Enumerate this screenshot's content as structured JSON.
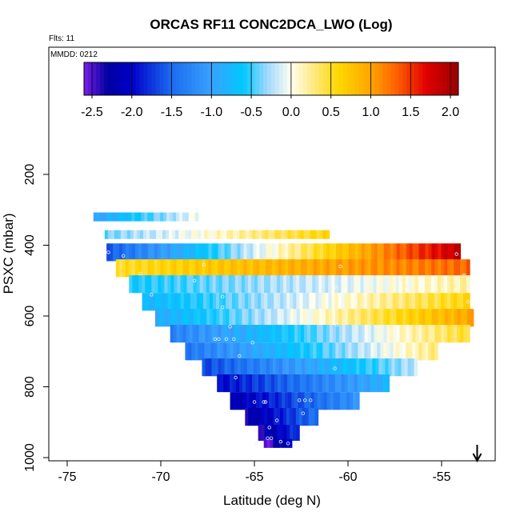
{
  "chart_data": {
    "type": "heatmap",
    "title": "ORCAS RF11 CONC2DCA_LWO (Log)",
    "subtitle_flights": "Flts: 11",
    "subtitle_date": "MMDD: 0212",
    "xlabel": "Latitude (deg N)",
    "ylabel": "PSXC (mbar)",
    "xlim": [
      -76,
      -52.2
    ],
    "ylim": [
      1010,
      30
    ],
    "y_inverted": true,
    "x_ticks": [
      -75,
      -70,
      -65,
      -60,
      -55
    ],
    "x_tick_labels": [
      "-75",
      "-70",
      "-65",
      "-60",
      "-55"
    ],
    "y_ticks": [
      200,
      400,
      600,
      800,
      1000
    ],
    "y_tick_labels": [
      "200",
      "400",
      "600",
      "800",
      "1000"
    ],
    "colorbar": {
      "range": [
        -2.6,
        2.1
      ],
      "ticks": [
        -2.5,
        -2.0,
        -1.5,
        -1.0,
        -0.5,
        0.0,
        0.5,
        1.0,
        1.5,
        2.0
      ],
      "tick_labels": [
        "-2.5",
        "-2.0",
        "-1.5",
        "-1.0",
        "-0.5",
        "0.0",
        "0.5",
        "1.0",
        "1.5",
        "2.0"
      ],
      "stops": [
        {
          "v": -2.6,
          "c": "#7a1ee8"
        },
        {
          "v": -2.3,
          "c": "#0000a0"
        },
        {
          "v": -2.0,
          "c": "#0000c8"
        },
        {
          "v": -1.5,
          "c": "#1a6cf0"
        },
        {
          "v": -1.0,
          "c": "#3aa0ff"
        },
        {
          "v": -0.6,
          "c": "#00c8ff"
        },
        {
          "v": -0.3,
          "c": "#a0d8ff"
        },
        {
          "v": 0.0,
          "c": "#fffff0"
        },
        {
          "v": 0.3,
          "c": "#ffe87a"
        },
        {
          "v": 0.6,
          "c": "#ffd700"
        },
        {
          "v": 1.0,
          "c": "#ffa500"
        },
        {
          "v": 1.3,
          "c": "#ff6600"
        },
        {
          "v": 1.7,
          "c": "#e00000"
        },
        {
          "v": 2.1,
          "c": "#9a0000"
        }
      ]
    },
    "rows": [
      {
        "p": 320,
        "h": 25,
        "lat0": -73.6,
        "lat1": -68.0,
        "v0": -1.0,
        "v1": 0.0
      },
      {
        "p": 370,
        "h": 25,
        "lat0": -73.0,
        "lat1": -61.0,
        "v0": -0.4,
        "v1": 0.6
      },
      {
        "p": 420,
        "h": 50,
        "lat0": -72.9,
        "lat1": -54.0,
        "v0": -1.6,
        "v1": 1.9
      },
      {
        "p": 465,
        "h": 50,
        "lat0": -72.4,
        "lat1": -53.5,
        "v0": 0.5,
        "v1": 1.3
      },
      {
        "p": 510,
        "h": 50,
        "lat0": -71.7,
        "lat1": -53.5,
        "v0": -0.6,
        "v1": 0.2
      },
      {
        "p": 560,
        "h": 50,
        "lat0": -71.0,
        "lat1": -53.5,
        "v0": -0.8,
        "v1": 0.6
      },
      {
        "p": 605,
        "h": 50,
        "lat0": -70.3,
        "lat1": -53.3,
        "v0": -0.9,
        "v1": 1.0
      },
      {
        "p": 650,
        "h": 50,
        "lat0": -69.5,
        "lat1": -53.5,
        "v0": -1.3,
        "v1": 0.5
      },
      {
        "p": 700,
        "h": 50,
        "lat0": -68.7,
        "lat1": -55.2,
        "v0": -1.4,
        "v1": 0.3
      },
      {
        "p": 745,
        "h": 50,
        "lat0": -67.8,
        "lat1": -56.3,
        "v0": -1.7,
        "v1": -0.2
      },
      {
        "p": 790,
        "h": 50,
        "lat0": -67.0,
        "lat1": -57.8,
        "v0": -2.0,
        "v1": -0.8
      },
      {
        "p": 840,
        "h": 50,
        "lat0": -66.3,
        "lat1": -59.4,
        "v0": -2.2,
        "v1": -1.1
      },
      {
        "p": 885,
        "h": 50,
        "lat0": -65.5,
        "lat1": -61.6,
        "v0": -2.3,
        "v1": -1.4
      },
      {
        "p": 930,
        "h": 45,
        "lat0": -64.8,
        "lat1": -62.6,
        "v0": -2.4,
        "v1": -1.7
      },
      {
        "p": 960,
        "h": 25,
        "lat0": -64.5,
        "lat1": -63.0,
        "v0": -2.6,
        "v1": -2.0
      }
    ],
    "points": [
      {
        "lat": -73.5,
        "p": 300
      },
      {
        "lat": -71.7,
        "p": 340
      },
      {
        "lat": -68.1,
        "p": 300
      },
      {
        "lat": -72.8,
        "p": 420
      },
      {
        "lat": -72.0,
        "p": 430
      },
      {
        "lat": -67.7,
        "p": 455
      },
      {
        "lat": -60.4,
        "p": 460
      },
      {
        "lat": -54.2,
        "p": 425
      },
      {
        "lat": -71.1,
        "p": 480
      },
      {
        "lat": -68.2,
        "p": 500
      },
      {
        "lat": -53.8,
        "p": 485
      },
      {
        "lat": -70.5,
        "p": 540
      },
      {
        "lat": -66.7,
        "p": 545
      },
      {
        "lat": -60.6,
        "p": 520
      },
      {
        "lat": -66.7,
        "p": 575
      },
      {
        "lat": -53.6,
        "p": 560
      },
      {
        "lat": -66.3,
        "p": 630
      },
      {
        "lat": -67.1,
        "p": 665
      },
      {
        "lat": -66.9,
        "p": 665
      },
      {
        "lat": -66.5,
        "p": 665
      },
      {
        "lat": -66.1,
        "p": 665
      },
      {
        "lat": -60.6,
        "p": 625
      },
      {
        "lat": -65.1,
        "p": 675
      },
      {
        "lat": -65.8,
        "p": 713
      },
      {
        "lat": -60.7,
        "p": 748
      },
      {
        "lat": -66.0,
        "p": 774
      },
      {
        "lat": -65.0,
        "p": 843
      },
      {
        "lat": -64.5,
        "p": 843
      },
      {
        "lat": -64.4,
        "p": 843
      },
      {
        "lat": -62.6,
        "p": 838
      },
      {
        "lat": -62.3,
        "p": 838
      },
      {
        "lat": -62.0,
        "p": 838
      },
      {
        "lat": -62.4,
        "p": 875
      },
      {
        "lat": -63.8,
        "p": 895
      },
      {
        "lat": -64.2,
        "p": 915
      },
      {
        "lat": -62.4,
        "p": 935
      },
      {
        "lat": -64.3,
        "p": 945
      },
      {
        "lat": -64.1,
        "p": 945
      },
      {
        "lat": -64.9,
        "p": 960
      },
      {
        "lat": -63.6,
        "p": 955
      },
      {
        "lat": -63.2,
        "p": 960
      }
    ],
    "arrow": {
      "lat": -53.1,
      "label": "↓"
    }
  }
}
